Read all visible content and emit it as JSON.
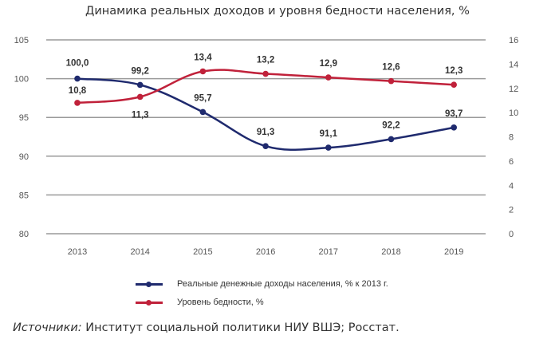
{
  "chart_data": {
    "type": "line",
    "title": "Динамика реальных доходов и уровня бедности населения, %",
    "categories": [
      "2013",
      "2014",
      "2015",
      "2016",
      "2017",
      "2018",
      "2019"
    ],
    "y_left": {
      "ylim": [
        80,
        105
      ],
      "ticks": [
        "80",
        "85",
        "90",
        "95",
        "100",
        "105"
      ]
    },
    "y_right": {
      "ylim": [
        0,
        16
      ],
      "ticks": [
        "0",
        "2",
        "4",
        "6",
        "8",
        "10",
        "12",
        "14",
        "16"
      ]
    },
    "grid": true,
    "legend_position": "bottom",
    "series": [
      {
        "name": "Реальные денежные доходы населения, % к 2013 г.",
        "axis": "left",
        "color": "#1f2a6e",
        "values": [
          100.0,
          99.2,
          95.7,
          91.3,
          91.1,
          92.2,
          93.7
        ],
        "labels": [
          "100,0",
          "99,2",
          "95,7",
          "91,3",
          "91,1",
          "92,2",
          "93,7"
        ]
      },
      {
        "name": "Уровень бедности, %",
        "axis": "right",
        "color": "#c0213a",
        "values": [
          10.8,
          11.3,
          13.4,
          13.2,
          12.9,
          12.6,
          12.3
        ],
        "labels": [
          "10,8",
          "11,3",
          "13,4",
          "13,2",
          "12,9",
          "12,6",
          "12,3"
        ]
      }
    ]
  },
  "source": {
    "prefix": "Источники:",
    "text": " Институт социальной политики НИУ ВШЭ; Росстат."
  }
}
